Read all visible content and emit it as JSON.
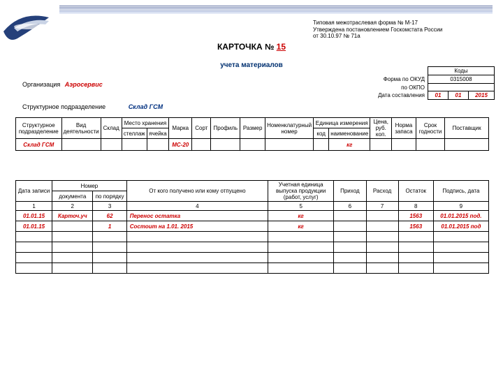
{
  "stripes": {
    "colors": [
      "#6a7aa8",
      "#7888b4",
      "#8696c0",
      "#94a4cc",
      "#a2b2d8",
      "#b0c0e4"
    ]
  },
  "logo": {
    "bg": "#25407a",
    "accent": "#c9d3e5"
  },
  "header_note": {
    "l1": "Типовая межотраслевая форма № М-17",
    "l2": "Утверждена постановлением Госкомстата России",
    "l3": "от 30.10.97 № 71а"
  },
  "title_prefix": "КАРТОЧКА № ",
  "title_number": "15",
  "subtitle": "учета материалов",
  "org_label": "Организация",
  "org_value": "Аэросервис",
  "dept_label": "Структурное подразделение",
  "dept_value": "Склад ГСМ",
  "codes": {
    "hdr": "Коды",
    "okud_lbl": "Форма по ОКУД",
    "okud_val": "0315008",
    "okpo_lbl": "по ОКПО",
    "okpo_val": "",
    "date_lbl": "Дата составления",
    "d": "01",
    "m": "01",
    "y": "2015"
  },
  "t1": {
    "h": {
      "c1": "Структурное подразделение",
      "c2": "Вид деятельности",
      "c3": "Склад",
      "c4": "Место хранения",
      "c4a": "стеллаж",
      "c4b": "ячейка",
      "c5": "Марка",
      "c6": "Сорт",
      "c7": "Профиль",
      "c8": "Размер",
      "c9": "Номенклатурный номер",
      "c10": "Единица измерения",
      "c10a": "код",
      "c10b": "наименование",
      "c11": "Цена, руб. коп.",
      "c12": "Норма запаса",
      "c13": "Срок годности",
      "c14": "Поставщик"
    },
    "row": {
      "c1": "Склад ГСМ",
      "c5": "МС-20",
      "c10b": "кг"
    }
  },
  "t2": {
    "h": {
      "c1": "Дата записи",
      "c2": "Номер",
      "c2a": "документа",
      "c2b": "по порядку",
      "c3": "От кого получено или кому отпущено",
      "c4": "Учетная единица выпуска продукции (работ, услуг)",
      "c5": "Приход",
      "c6": "Расход",
      "c7": "Остаток",
      "c8": "Подпись, дата"
    },
    "colnums": [
      "1",
      "2",
      "3",
      "4",
      "5",
      "6",
      "7",
      "8",
      "9"
    ],
    "rows": [
      {
        "c1": "01.01.15",
        "c2a": "Карточ.уч",
        "c2b": "62",
        "c3": "Перенос остатка",
        "c4": "кг",
        "c5": "",
        "c6": "",
        "c7": "1563",
        "c8": "01.01.2015 под."
      },
      {
        "c1": "01.01.15",
        "c2a": "",
        "c2b": "1",
        "c3": "Состоит на 1.01. 2015",
        "c4": "кг",
        "c5": "",
        "c6": "",
        "c7": "1563",
        "c8": "01.01.2015 под"
      },
      {
        "c1": "",
        "c2a": "",
        "c2b": "",
        "c3": "",
        "c4": "",
        "c5": "",
        "c6": "",
        "c7": "",
        "c8": ""
      },
      {
        "c1": "",
        "c2a": "",
        "c2b": "",
        "c3": "",
        "c4": "",
        "c5": "",
        "c6": "",
        "c7": "",
        "c8": ""
      },
      {
        "c1": "",
        "c2a": "",
        "c2b": "",
        "c3": "",
        "c4": "",
        "c5": "",
        "c6": "",
        "c7": "",
        "c8": ""
      },
      {
        "c1": "",
        "c2a": "",
        "c2b": "",
        "c3": "",
        "c4": "",
        "c5": "",
        "c6": "",
        "c7": "",
        "c8": ""
      }
    ]
  }
}
